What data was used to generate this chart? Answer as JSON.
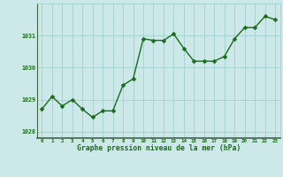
{
  "x": [
    0,
    1,
    2,
    3,
    4,
    5,
    6,
    7,
    8,
    9,
    10,
    11,
    12,
    13,
    14,
    15,
    16,
    17,
    18,
    19,
    20,
    21,
    22,
    23
  ],
  "y": [
    1028.7,
    1029.1,
    1028.8,
    1029.0,
    1028.7,
    1028.45,
    1028.65,
    1028.65,
    1029.45,
    1029.65,
    1030.9,
    1030.85,
    1030.85,
    1031.05,
    1030.6,
    1030.2,
    1030.2,
    1030.2,
    1030.35,
    1030.9,
    1031.25,
    1031.25,
    1031.6,
    1031.5
  ],
  "line_color": "#1a6b1a",
  "marker_color": "#1a6b1a",
  "bg_color": "#cce8e8",
  "grid_color": "#99cccc",
  "xlabel": "Graphe pression niveau de la mer (hPa)",
  "xlabel_color": "#1a6b1a",
  "tick_color": "#1a6b1a",
  "ylim": [
    1027.8,
    1032.0
  ],
  "yticks": [
    1028,
    1029,
    1030,
    1031
  ],
  "xticks": [
    0,
    1,
    2,
    3,
    4,
    5,
    6,
    7,
    8,
    9,
    10,
    11,
    12,
    13,
    14,
    15,
    16,
    17,
    18,
    19,
    20,
    21,
    22,
    23
  ],
  "marker_size": 2.5,
  "line_width": 1.0
}
